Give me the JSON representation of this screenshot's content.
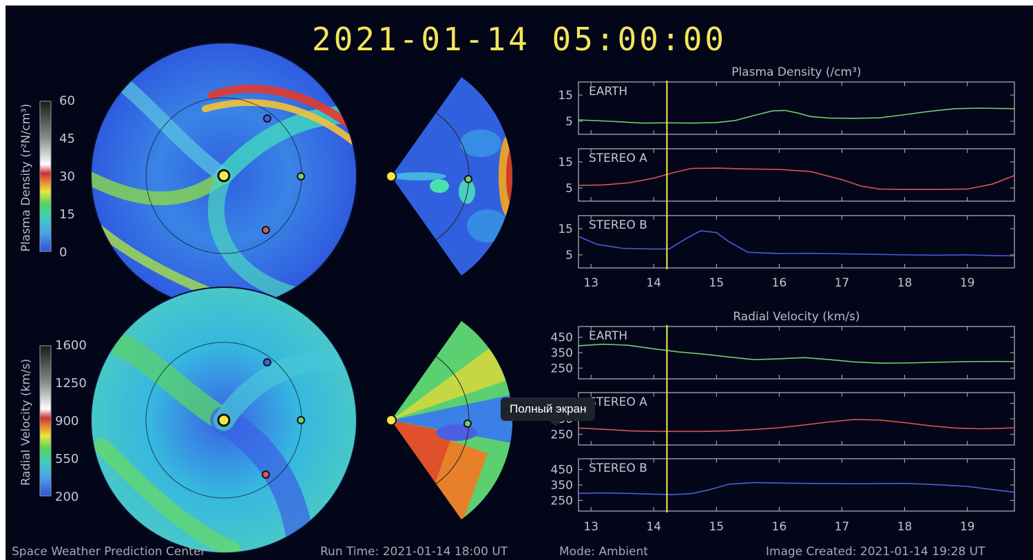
{
  "timestamp": "2021-01-14  05:00:00",
  "colors": {
    "background": "#020618",
    "timestamp": "#f2e55a",
    "earth": "#6fcf6f",
    "stereo_a": "#d65a4a",
    "stereo_b": "#4a5ce0",
    "marker": "#ecdc4a"
  },
  "density_colorbar": {
    "label": "Plasma Density (r²N/cm³)",
    "ticks": [
      "60",
      "45",
      "30",
      "15",
      "0"
    ]
  },
  "velocity_colorbar": {
    "label": "Radial Velocity (km/s)",
    "ticks": [
      "1600",
      "1250",
      "900",
      "550",
      "200"
    ]
  },
  "icons": {
    "sun": "sun-icon",
    "earth": "earth-marker-icon",
    "stereo_a": "stereo-a-marker-icon",
    "stereo_b": "stereo-b-marker-icon"
  },
  "footer": {
    "center": "Space Weather Prediction Center",
    "run_time": "Run Time: 2021-01-14 18:00 UT",
    "mode": "Mode: Ambient",
    "image_created": "Image Created: 2021-01-14 19:28 UT"
  },
  "tooltip": {
    "text": "Полный экран"
  },
  "chart_data": [
    {
      "type": "line",
      "title": "Plasma Density (/cm³)",
      "xlim": [
        12.8,
        19.75
      ],
      "xticks": [
        13,
        14,
        15,
        16,
        17,
        18,
        19
      ],
      "ylim": [
        0,
        20
      ],
      "yticks": [
        5,
        15
      ],
      "current_time": 14.21,
      "series": [
        {
          "name": "EARTH",
          "color": "#6fcf6f",
          "x": [
            12.8,
            13.3,
            13.8,
            14.2,
            14.6,
            15.0,
            15.3,
            15.6,
            15.9,
            16.1,
            16.3,
            16.5,
            16.8,
            17.2,
            17.6,
            18.0,
            18.4,
            18.8,
            19.2,
            19.5,
            19.75
          ],
          "y": [
            5.5,
            5.0,
            4.3,
            4.4,
            4.3,
            4.5,
            5.3,
            7.2,
            9.0,
            9.1,
            8.1,
            6.8,
            6.2,
            6.1,
            6.3,
            7.5,
            8.8,
            9.8,
            10.0,
            9.9,
            9.8
          ]
        },
        {
          "name": "STEREO A",
          "color": "#d65a4a",
          "x": [
            12.8,
            13.2,
            13.6,
            14.0,
            14.3,
            14.6,
            15.0,
            15.5,
            16.0,
            16.5,
            17.0,
            17.3,
            17.6,
            18.0,
            18.5,
            19.0,
            19.4,
            19.75
          ],
          "y": [
            6.0,
            6.2,
            7.0,
            8.8,
            10.8,
            12.5,
            12.6,
            12.3,
            12.1,
            11.3,
            8.2,
            5.8,
            4.6,
            4.5,
            4.5,
            4.6,
            6.5,
            9.8
          ]
        },
        {
          "name": "STEREO B",
          "color": "#4a5ce0",
          "x": [
            12.8,
            13.1,
            13.5,
            14.0,
            14.25,
            14.5,
            14.75,
            15.0,
            15.2,
            15.5,
            16.0,
            16.5,
            17.0,
            17.5,
            18.0,
            18.5,
            19.0,
            19.4,
            19.75
          ],
          "y": [
            12.0,
            9.0,
            7.5,
            7.2,
            7.3,
            11.0,
            14.2,
            13.5,
            10.0,
            6.0,
            5.5,
            5.6,
            5.4,
            5.2,
            5.0,
            4.9,
            5.0,
            4.7,
            4.6
          ]
        }
      ]
    },
    {
      "type": "line",
      "title": "Radial Velocity (km/s)",
      "xlim": [
        12.8,
        19.75
      ],
      "xticks": [
        13,
        14,
        15,
        16,
        17,
        18,
        19
      ],
      "ylim": [
        180,
        520
      ],
      "yticks": [
        250,
        350,
        450
      ],
      "current_time": 14.21,
      "series": [
        {
          "name": "EARTH",
          "color": "#6fcf6f",
          "x": [
            12.8,
            13.2,
            13.6,
            14.0,
            14.4,
            14.8,
            15.2,
            15.6,
            16.0,
            16.4,
            16.8,
            17.2,
            17.6,
            18.0,
            18.5,
            19.0,
            19.5,
            19.75
          ],
          "y": [
            395,
            405,
            398,
            375,
            355,
            340,
            322,
            305,
            310,
            318,
            305,
            290,
            282,
            283,
            288,
            292,
            293,
            292
          ]
        },
        {
          "name": "STEREO A",
          "color": "#d65a4a",
          "x": [
            12.8,
            13.2,
            13.6,
            14.0,
            14.4,
            14.8,
            15.2,
            15.6,
            16.0,
            16.4,
            16.8,
            17.2,
            17.6,
            18.0,
            18.4,
            18.8,
            19.2,
            19.5,
            19.75
          ],
          "y": [
            290,
            282,
            272,
            268,
            268,
            268,
            272,
            280,
            292,
            310,
            330,
            345,
            342,
            325,
            305,
            290,
            285,
            288,
            292
          ]
        },
        {
          "name": "STEREO B",
          "color": "#4a5ce0",
          "x": [
            12.8,
            13.2,
            13.6,
            14.0,
            14.3,
            14.6,
            14.9,
            15.2,
            15.6,
            16.0,
            16.5,
            17.0,
            17.5,
            18.0,
            18.5,
            19.0,
            19.4,
            19.75
          ],
          "y": [
            295,
            298,
            295,
            290,
            287,
            293,
            320,
            355,
            365,
            362,
            360,
            358,
            358,
            360,
            352,
            340,
            320,
            302
          ]
        }
      ]
    }
  ]
}
